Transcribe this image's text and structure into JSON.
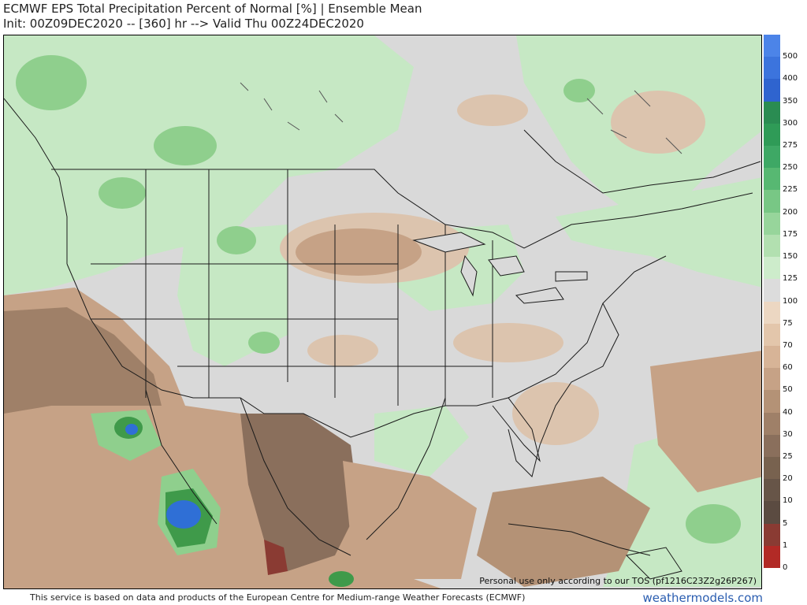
{
  "header": {
    "title": "ECMWF EPS Total Precipitation Percent of Normal [%] | Ensemble Mean",
    "subtitle": "Init: 00Z09DEC2020 -- [360] hr --> Valid Thu 00Z24DEC2020"
  },
  "map": {
    "tos_note": "Personal use only according to our TOS (pf1216C23Z2g26P267)",
    "palette": {
      "brown_dark": "#6f5a4a",
      "brown": "#8c7563",
      "tan": "#c7ab93",
      "tan_light": "#dcc4ae",
      "gray": "#d9d9d9",
      "green_light": "#c6e8c4",
      "green": "#8fcf8d",
      "green_dark": "#3f9a4a",
      "blue": "#2f6fd6",
      "land_line": "#1a1a1a"
    }
  },
  "colorbar": {
    "labels": [
      "500",
      "400",
      "350",
      "300",
      "275",
      "250",
      "225",
      "200",
      "175",
      "150",
      "125",
      "100",
      "75",
      "70",
      "60",
      "50",
      "40",
      "30",
      "25",
      "20",
      "10",
      "5",
      "1",
      "0"
    ],
    "colors": [
      "#4c84e8",
      "#3c74dd",
      "#2f64cf",
      "#2a8c52",
      "#2f9b57",
      "#3ea865",
      "#57b872",
      "#78c785",
      "#97d59b",
      "#b2e0b0",
      "#cdeccb",
      "#dcdcdc",
      "#ecd7c2",
      "#e3c6ab",
      "#d7b497",
      "#c6a286",
      "#b49276",
      "#9f8068",
      "#8a6f5c",
      "#78624f",
      "#675548",
      "#5b4b41",
      "#8a3b33",
      "#b22a26"
    ]
  },
  "footer": {
    "text": "This service is based on data and products of the European Centre for Medium-range Weather Forecasts (ECMWF)",
    "brand": "weathermodels.com"
  }
}
